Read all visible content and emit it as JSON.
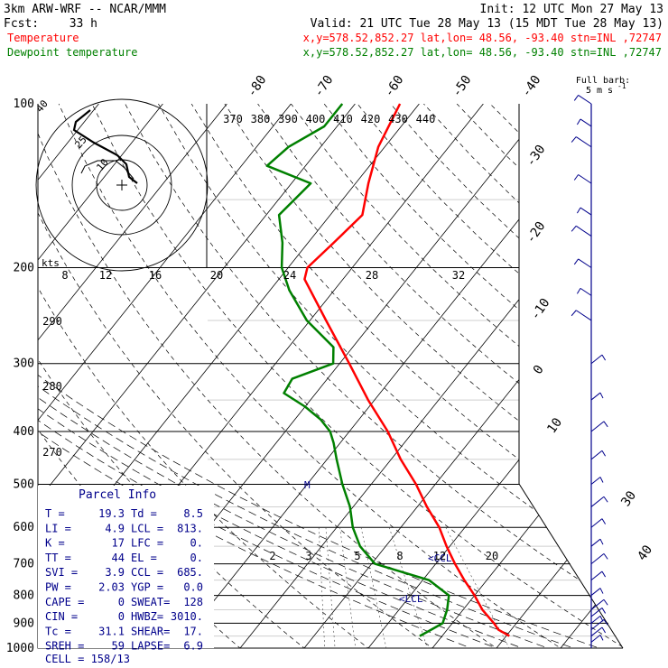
{
  "header": {
    "model": "3km ARW-WRF -- NCAR/MMM",
    "init": "Init: 12 UTC Mon 27 May 13",
    "fcst_label": "Fcst:",
    "fcst_value": "33 h",
    "valid": "Valid: 21 UTC Tue 28 May 13 (15 MDT Tue 28 May 13)",
    "temp_label": "Temperature",
    "temp_info": "x,y=578.52,852.27   lat,lon= 48.56, -93.40   stn=INL ,72747",
    "dew_label": "Dewpoint temperature",
    "dew_info": "x,y=578.52,852.27   lat,lon= 48.56, -93.40   stn=INL ,72747"
  },
  "colors": {
    "temperature": "#ff0000",
    "dewpoint": "#008000",
    "wind": "#00008b",
    "parcel": "#00008b",
    "header_info": "#ff0000"
  },
  "wind_legend": {
    "line1": "Full barb:",
    "line2": "5 m s",
    "exp": "-1"
  },
  "hodograph": {
    "kts_label": "kts",
    "ring_labels": [
      "10",
      "25",
      "40"
    ]
  },
  "ticks": {
    "pressure": [
      "100",
      "200",
      "300",
      "400",
      "500",
      "600",
      "700",
      "800",
      "900",
      "1000"
    ],
    "temperature_top": [
      "-80",
      "-70",
      "-60",
      "-50",
      "-40"
    ],
    "temperature_right": [
      "-30",
      "-20",
      "-10",
      "0",
      "10",
      "20",
      "30",
      "40"
    ],
    "theta_e": [
      "370",
      "380",
      "390",
      "400",
      "410",
      "420",
      "430",
      "440"
    ],
    "mixing_ratio_upper": [
      "8",
      "12",
      "16",
      "20",
      "24",
      "28",
      "32"
    ],
    "mixing_ratio_lower": [
      "2",
      "3",
      "5",
      "8",
      "12",
      "20"
    ],
    "theta_left": [
      "290",
      "280",
      "270"
    ]
  },
  "marks": {
    "ccl": "CCL",
    "lcl": "LCL",
    "m": "M"
  },
  "parcel_info": {
    "title": "Parcel Info",
    "rows": [
      [
        "T  =",
        "19.3",
        "Td =",
        "8.5"
      ],
      [
        "LI =",
        "4.9",
        "LCL =",
        "813."
      ],
      [
        "K  =",
        "17",
        "LFC =",
        "0."
      ],
      [
        "TT =",
        "44",
        "EL  =",
        "0."
      ],
      [
        "SVI =",
        "3.9",
        "CCL =",
        "685."
      ],
      [
        "PW =",
        "2.03",
        "YGP =",
        "0.0"
      ],
      [
        "CAPE =",
        "0",
        "SWEAT=",
        "128"
      ],
      [
        "CIN =",
        "0",
        "HWBZ=",
        "3010."
      ],
      [
        "Tc =",
        "31.1",
        "SHEAR=",
        "17."
      ],
      [
        "SREH =",
        "59",
        "LAPSE=",
        "6.9"
      ]
    ],
    "cell": "CELL = 158/13"
  },
  "chart_data": {
    "type": "line",
    "title": "",
    "xlabel": "",
    "ylabel": "",
    "y_scale": "log pressure (hPa)",
    "ylim": [
      1000,
      100
    ],
    "series": [
      {
        "name": "Temperature",
        "pressure": [
          950,
          925,
          900,
          850,
          800,
          750,
          700,
          650,
          600,
          550,
          500,
          450,
          400,
          350,
          300,
          250,
          210,
          200,
          180,
          160,
          140,
          120,
          100
        ],
        "values": [
          20.5,
          18.0,
          16.5,
          13.0,
          10.0,
          6.5,
          3.0,
          -0.5,
          -4.0,
          -8.5,
          -13.0,
          -18.5,
          -24.0,
          -31.0,
          -38.5,
          -47.5,
          -56.0,
          -57.0,
          -56.0,
          -55.0,
          -58.0,
          -61.0,
          -63.0
        ]
      },
      {
        "name": "Dewpoint temperature",
        "pressure": [
          950,
          925,
          900,
          850,
          800,
          750,
          700,
          650,
          600,
          550,
          500,
          450,
          420,
          400,
          380,
          360,
          340,
          320,
          300,
          280,
          250,
          220,
          200,
          180,
          160,
          140,
          130,
          120,
          110,
          100
        ],
        "values": [
          6.5,
          7.5,
          8.5,
          7.5,
          6.0,
          1.0,
          -9.5,
          -14.0,
          -17.5,
          -20.5,
          -24.5,
          -28.5,
          -31.0,
          -33.0,
          -36.0,
          -40.0,
          -45.0,
          -45.5,
          -41.0,
          -43.0,
          -50.5,
          -57.0,
          -61.0,
          -64.0,
          -68.0,
          -67.0,
          -76.0,
          -75.0,
          -72.0,
          -72.0
        ]
      }
    ],
    "wind_barbs_pressure": [
      975,
      950,
      925,
      900,
      875,
      850,
      800,
      750,
      700,
      650,
      600,
      550,
      500,
      450,
      400,
      350,
      300,
      250,
      225,
      200,
      175,
      160,
      140,
      120,
      110,
      100
    ]
  }
}
